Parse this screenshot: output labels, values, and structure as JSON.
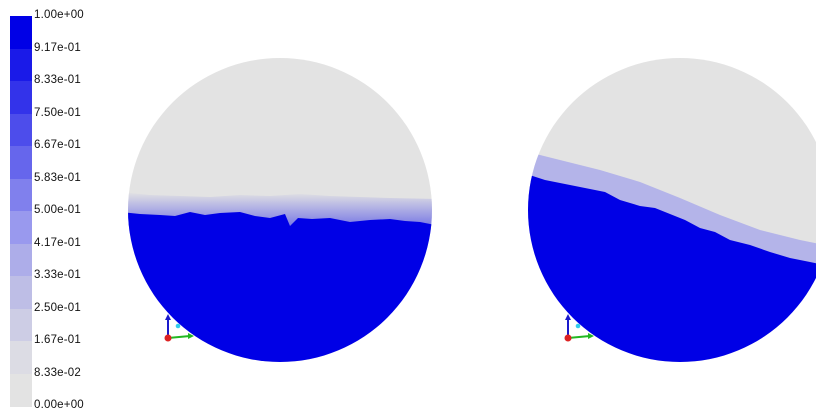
{
  "legend": {
    "labels": [
      "1.00e+00",
      "9.17e-01",
      "8.33e-01",
      "7.50e-01",
      "6.67e-01",
      "5.83e-01",
      "5.00e-01",
      "4.17e-01",
      "3.33e-01",
      "2.50e-01",
      "1.67e-01",
      "8.33e-02",
      "0.00e+00"
    ],
    "colors": [
      "#0000e6",
      "#1a1ae8",
      "#3333ea",
      "#4d4deb",
      "#6666ec",
      "#8080ed",
      "#9999ee",
      "#adade9",
      "#bebee6",
      "#cdcde5",
      "#dcdce4",
      "#e3e3e3"
    ]
  },
  "views": {
    "fill_color": "#0000e6",
    "empty_color": "#e3e3e3"
  }
}
